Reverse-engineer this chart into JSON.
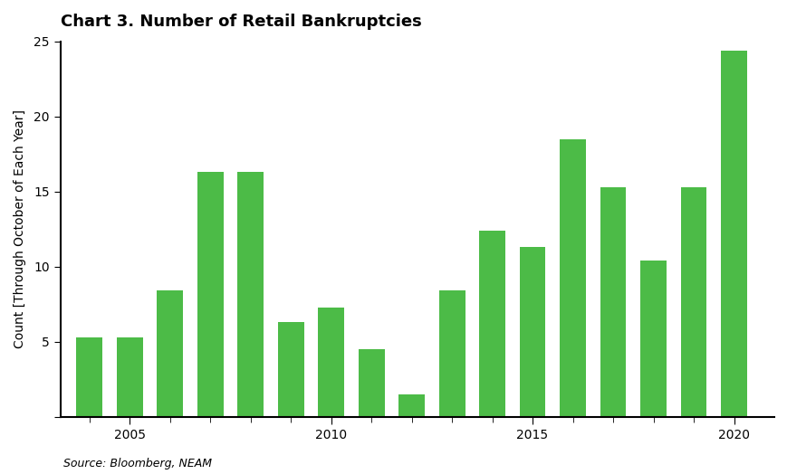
{
  "title": "Chart 3. Number of Retail Bankruptcies",
  "ylabel": "Count [Through October of Each Year]",
  "source": "Source: Bloomberg, NEAM",
  "years": [
    2004,
    2005,
    2006,
    2007,
    2008,
    2009,
    2010,
    2011,
    2012,
    2013,
    2014,
    2015,
    2016,
    2017,
    2018,
    2019,
    2020
  ],
  "values": [
    5.3,
    5.3,
    8.4,
    16.3,
    16.3,
    6.3,
    7.3,
    4.5,
    1.5,
    8.4,
    12.4,
    11.3,
    18.5,
    15.3,
    10.4,
    15.3,
    24.4
  ],
  "bar_color": "#4CBB47",
  "background_color": "#ffffff",
  "ylim": [
    0,
    25
  ],
  "yticks": [
    0,
    5,
    10,
    15,
    20,
    25
  ],
  "major_xticks": [
    2005,
    2010,
    2015,
    2020
  ],
  "minor_xticks": [
    2004,
    2005,
    2006,
    2007,
    2008,
    2009,
    2010,
    2011,
    2012,
    2013,
    2014,
    2015,
    2016,
    2017,
    2018,
    2019,
    2020
  ],
  "title_fontsize": 13,
  "label_fontsize": 10,
  "tick_fontsize": 10,
  "source_fontsize": 9
}
